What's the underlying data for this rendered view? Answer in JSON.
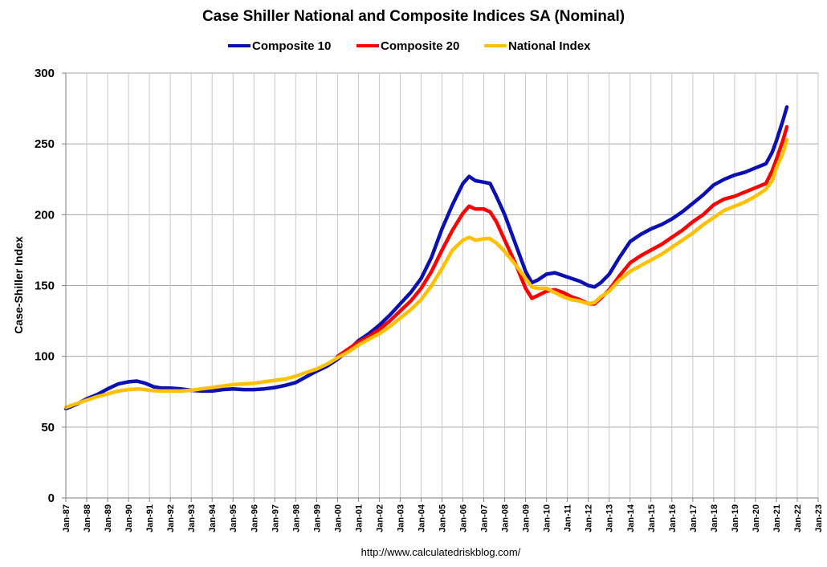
{
  "chart_data": {
    "type": "line",
    "title": "Case Shiller National and Composite Indices SA (Nominal)",
    "xlabel": "",
    "ylabel": "Case-Shiller Index",
    "source": "http://www.calculatedriskblog.com/",
    "ylim": [
      0,
      300
    ],
    "yticks": [
      0,
      50,
      100,
      150,
      200,
      250,
      300
    ],
    "xlim": [
      1987.0,
      2023.0
    ],
    "xtick_labels": [
      "Jan-87",
      "Jan-88",
      "Jan-89",
      "Jan-90",
      "Jan-91",
      "Jan-92",
      "Jan-93",
      "Jan-94",
      "Jan-95",
      "Jan-96",
      "Jan-97",
      "Jan-98",
      "Jan-99",
      "Jan-00",
      "Jan-01",
      "Jan-02",
      "Jan-03",
      "Jan-04",
      "Jan-05",
      "Jan-06",
      "Jan-07",
      "Jan-08",
      "Jan-09",
      "Jan-10",
      "Jan-11",
      "Jan-12",
      "Jan-13",
      "Jan-14",
      "Jan-15",
      "Jan-16",
      "Jan-17",
      "Jan-18",
      "Jan-19",
      "Jan-20",
      "Jan-21",
      "Jan-22",
      "Jan-23"
    ],
    "grid": true,
    "legend_position": "top",
    "series": [
      {
        "name": "Composite 10",
        "color": "#0a10b4",
        "points": [
          [
            1987.0,
            63
          ],
          [
            1987.5,
            66
          ],
          [
            1988.0,
            70
          ],
          [
            1988.5,
            73
          ],
          [
            1989.0,
            77
          ],
          [
            1989.5,
            80.5
          ],
          [
            1990.0,
            82
          ],
          [
            1990.4,
            82.5
          ],
          [
            1990.8,
            81
          ],
          [
            1991.2,
            78.5
          ],
          [
            1991.6,
            77.5
          ],
          [
            1992.0,
            77.5
          ],
          [
            1992.5,
            77
          ],
          [
            1993.0,
            76
          ],
          [
            1993.5,
            75.5
          ],
          [
            1994.0,
            75.5
          ],
          [
            1994.5,
            76.5
          ],
          [
            1995.0,
            77
          ],
          [
            1995.5,
            76.5
          ],
          [
            1996.0,
            76.5
          ],
          [
            1996.5,
            77
          ],
          [
            1997.0,
            78
          ],
          [
            1997.5,
            79.5
          ],
          [
            1998.0,
            81.5
          ],
          [
            1998.5,
            85.5
          ],
          [
            1999.0,
            89.5
          ],
          [
            1999.5,
            93
          ],
          [
            2000.0,
            98
          ],
          [
            2000.5,
            104
          ],
          [
            2001.0,
            111
          ],
          [
            2001.5,
            116
          ],
          [
            2002.0,
            122
          ],
          [
            2002.5,
            129
          ],
          [
            2003.0,
            137
          ],
          [
            2003.5,
            145
          ],
          [
            2004.0,
            155
          ],
          [
            2004.5,
            170
          ],
          [
            2005.0,
            190
          ],
          [
            2005.5,
            207
          ],
          [
            2006.0,
            222
          ],
          [
            2006.3,
            227
          ],
          [
            2006.6,
            224
          ],
          [
            2007.0,
            223
          ],
          [
            2007.3,
            222
          ],
          [
            2007.6,
            213
          ],
          [
            2008.0,
            200
          ],
          [
            2008.5,
            180
          ],
          [
            2009.0,
            160
          ],
          [
            2009.3,
            152
          ],
          [
            2009.6,
            154
          ],
          [
            2010.0,
            158
          ],
          [
            2010.4,
            159
          ],
          [
            2010.8,
            157
          ],
          [
            2011.2,
            155
          ],
          [
            2011.6,
            153
          ],
          [
            2012.0,
            150
          ],
          [
            2012.3,
            149
          ],
          [
            2012.6,
            152
          ],
          [
            2013.0,
            158
          ],
          [
            2013.5,
            170
          ],
          [
            2014.0,
            181
          ],
          [
            2014.5,
            186
          ],
          [
            2015.0,
            190
          ],
          [
            2015.5,
            193
          ],
          [
            2016.0,
            197
          ],
          [
            2016.5,
            202
          ],
          [
            2017.0,
            208
          ],
          [
            2017.5,
            214
          ],
          [
            2018.0,
            221
          ],
          [
            2018.5,
            225
          ],
          [
            2019.0,
            228
          ],
          [
            2019.5,
            230
          ],
          [
            2020.0,
            233
          ],
          [
            2020.5,
            236
          ],
          [
            2020.8,
            244
          ],
          [
            2021.0,
            252
          ],
          [
            2021.3,
            266
          ],
          [
            2021.5,
            276
          ]
        ]
      },
      {
        "name": "Composite 20",
        "color": "#ff0000",
        "points": [
          [
            2000.0,
            100
          ],
          [
            2000.5,
            105
          ],
          [
            2001.0,
            110
          ],
          [
            2001.5,
            114
          ],
          [
            2002.0,
            119
          ],
          [
            2002.5,
            125
          ],
          [
            2003.0,
            132
          ],
          [
            2003.5,
            139
          ],
          [
            2004.0,
            148
          ],
          [
            2004.5,
            160
          ],
          [
            2005.0,
            175
          ],
          [
            2005.5,
            189
          ],
          [
            2006.0,
            201
          ],
          [
            2006.3,
            206
          ],
          [
            2006.6,
            204
          ],
          [
            2007.0,
            204
          ],
          [
            2007.3,
            202
          ],
          [
            2007.6,
            195
          ],
          [
            2008.0,
            182
          ],
          [
            2008.5,
            166
          ],
          [
            2009.0,
            148
          ],
          [
            2009.3,
            141
          ],
          [
            2009.6,
            143
          ],
          [
            2010.0,
            146
          ],
          [
            2010.4,
            147
          ],
          [
            2010.8,
            145
          ],
          [
            2011.2,
            142
          ],
          [
            2011.6,
            140
          ],
          [
            2012.0,
            137
          ],
          [
            2012.3,
            137
          ],
          [
            2012.6,
            141
          ],
          [
            2013.0,
            147
          ],
          [
            2013.5,
            157
          ],
          [
            2014.0,
            166
          ],
          [
            2014.5,
            171
          ],
          [
            2015.0,
            175
          ],
          [
            2015.5,
            179
          ],
          [
            2016.0,
            184
          ],
          [
            2016.5,
            189
          ],
          [
            2017.0,
            195
          ],
          [
            2017.5,
            200
          ],
          [
            2018.0,
            207
          ],
          [
            2018.5,
            211
          ],
          [
            2019.0,
            213
          ],
          [
            2019.5,
            216
          ],
          [
            2020.0,
            219
          ],
          [
            2020.5,
            222
          ],
          [
            2020.8,
            231
          ],
          [
            2021.0,
            239
          ],
          [
            2021.3,
            252
          ],
          [
            2021.5,
            262
          ]
        ]
      },
      {
        "name": "National Index",
        "color": "#ffc000",
        "points": [
          [
            1987.0,
            64
          ],
          [
            1987.5,
            66.5
          ],
          [
            1988.0,
            69
          ],
          [
            1988.5,
            71.5
          ],
          [
            1989.0,
            73.5
          ],
          [
            1989.5,
            75.5
          ],
          [
            1990.0,
            76.5
          ],
          [
            1990.5,
            77
          ],
          [
            1991.0,
            76
          ],
          [
            1991.5,
            75.5
          ],
          [
            1992.0,
            75.5
          ],
          [
            1992.5,
            75.5
          ],
          [
            1993.0,
            76
          ],
          [
            1993.5,
            77
          ],
          [
            1994.0,
            78
          ],
          [
            1994.5,
            79
          ],
          [
            1995.0,
            80
          ],
          [
            1995.5,
            80.5
          ],
          [
            1996.0,
            81
          ],
          [
            1996.5,
            82
          ],
          [
            1997.0,
            83
          ],
          [
            1997.5,
            84
          ],
          [
            1998.0,
            86
          ],
          [
            1998.5,
            88.5
          ],
          [
            1999.0,
            91
          ],
          [
            1999.5,
            94.5
          ],
          [
            2000.0,
            99
          ],
          [
            2000.5,
            103
          ],
          [
            2001.0,
            108
          ],
          [
            2001.5,
            112
          ],
          [
            2002.0,
            116
          ],
          [
            2002.5,
            121
          ],
          [
            2003.0,
            127
          ],
          [
            2003.5,
            133
          ],
          [
            2004.0,
            140
          ],
          [
            2004.5,
            150
          ],
          [
            2005.0,
            162
          ],
          [
            2005.5,
            175
          ],
          [
            2006.0,
            182
          ],
          [
            2006.3,
            184
          ],
          [
            2006.6,
            182
          ],
          [
            2007.0,
            183
          ],
          [
            2007.3,
            183
          ],
          [
            2007.6,
            180
          ],
          [
            2008.0,
            174
          ],
          [
            2008.5,
            165
          ],
          [
            2009.0,
            155
          ],
          [
            2009.3,
            149
          ],
          [
            2009.6,
            148
          ],
          [
            2010.0,
            148
          ],
          [
            2010.4,
            145
          ],
          [
            2010.8,
            142
          ],
          [
            2011.2,
            140
          ],
          [
            2011.6,
            139
          ],
          [
            2012.0,
            137
          ],
          [
            2012.3,
            138
          ],
          [
            2012.6,
            142
          ],
          [
            2013.0,
            146
          ],
          [
            2013.5,
            154
          ],
          [
            2014.0,
            160
          ],
          [
            2014.5,
            164
          ],
          [
            2015.0,
            168
          ],
          [
            2015.5,
            172
          ],
          [
            2016.0,
            177
          ],
          [
            2016.5,
            182
          ],
          [
            2017.0,
            187
          ],
          [
            2017.5,
            193
          ],
          [
            2018.0,
            198
          ],
          [
            2018.5,
            203
          ],
          [
            2019.0,
            206
          ],
          [
            2019.5,
            209
          ],
          [
            2020.0,
            213
          ],
          [
            2020.5,
            218
          ],
          [
            2020.8,
            224
          ],
          [
            2021.0,
            233
          ],
          [
            2021.3,
            243
          ],
          [
            2021.5,
            253
          ]
        ]
      }
    ]
  }
}
